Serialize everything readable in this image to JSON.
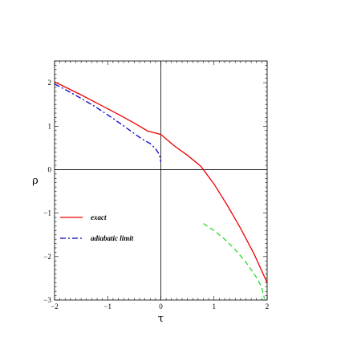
{
  "chart_data": {
    "type": "line",
    "xlabel": "τ",
    "ylabel": "ρ",
    "xlim": [
      -2,
      2
    ],
    "ylim": [
      -3,
      2.5
    ],
    "x_ticks": [
      {
        "value": -2,
        "label": "−2"
      },
      {
        "value": -1,
        "label": "−1"
      },
      {
        "value": 0,
        "label": "0"
      },
      {
        "value": 1,
        "label": "1"
      },
      {
        "value": 2,
        "label": "2"
      }
    ],
    "y_ticks": [
      {
        "value": 2,
        "label": "2"
      },
      {
        "value": 1,
        "label": "1"
      },
      {
        "value": 0,
        "label": "0"
      },
      {
        "value": -1,
        "label": "−1"
      },
      {
        "value": -2,
        "label": "−2"
      },
      {
        "value": -3,
        "label": "−3"
      }
    ],
    "zero_lines": true,
    "grid": false,
    "legend_position": "left",
    "series": [
      {
        "name": "exact",
        "color": "#ee0000",
        "style": "solid",
        "x": [
          -2,
          -1.75,
          -1.5,
          -1.25,
          -1,
          -0.75,
          -0.5,
          -0.25,
          0,
          0.25,
          0.5,
          0.75,
          0.8,
          1,
          1.25,
          1.5,
          1.75,
          2
        ],
        "y": [
          2.02,
          1.87,
          1.72,
          1.56,
          1.4,
          1.24,
          1.07,
          0.89,
          0.81,
          0.55,
          0.33,
          0.08,
          0.0,
          -0.33,
          -0.82,
          -1.35,
          -1.93,
          -2.6
        ]
      },
      {
        "name": "adiabatic limit",
        "color": "#0000cc",
        "style": "dash-dot",
        "x": [
          -2,
          -1.75,
          -1.5,
          -1.25,
          -1,
          -0.75,
          -0.5,
          -0.35,
          -0.2,
          -0.1,
          -0.05,
          -0.02,
          0
        ],
        "y": [
          1.97,
          1.81,
          1.64,
          1.46,
          1.26,
          1.05,
          0.83,
          0.7,
          0.6,
          0.48,
          0.39,
          0.3,
          0.18
        ]
      },
      {
        "color": "#22dd22",
        "style": "dashed",
        "x": [
          0.8,
          1,
          1.2,
          1.4,
          1.6,
          1.8,
          1.9,
          1.95
        ],
        "y": [
          -1.24,
          -1.4,
          -1.6,
          -1.84,
          -2.13,
          -2.48,
          -2.72,
          -2.97
        ]
      }
    ]
  }
}
